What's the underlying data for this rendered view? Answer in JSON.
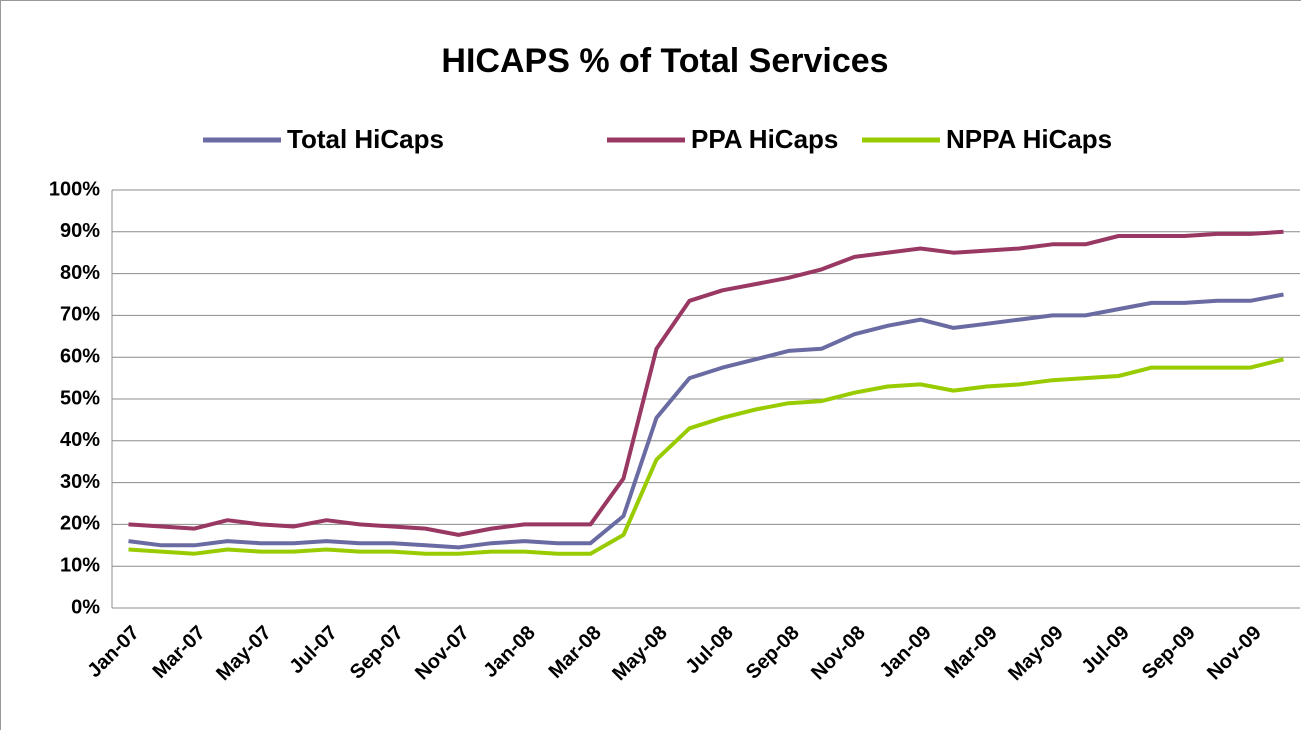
{
  "chart_data": {
    "type": "line",
    "title": "HICAPS % of Total Services",
    "categories": [
      "Jan-07",
      null,
      "Mar-07",
      null,
      "May-07",
      null,
      "Jul-07",
      null,
      "Sep-07",
      null,
      "Nov-07",
      null,
      "Jan-08",
      null,
      "Mar-08",
      null,
      "May-08",
      null,
      "Jul-08",
      null,
      "Sep-08",
      null,
      "Nov-08",
      null,
      "Jan-09",
      null,
      "Mar-09",
      null,
      "May-09",
      null,
      "Jul-09",
      null,
      "Sep-09",
      null,
      "Nov-09",
      null
    ],
    "series": [
      {
        "name": "Total HiCaps",
        "color": "#6b6ba3",
        "values": [
          16,
          15,
          15,
          16,
          15.5,
          15.5,
          16,
          15.5,
          15.5,
          15,
          14.5,
          15.5,
          16,
          15.5,
          15.5,
          22,
          45.5,
          55,
          57.5,
          59.5,
          61.5,
          62,
          65.5,
          67.5,
          69,
          67,
          68,
          69,
          70,
          70,
          71.5,
          73,
          73,
          73.5,
          73.5,
          75
        ]
      },
      {
        "name": "PPA HiCaps",
        "color": "#993862",
        "values": [
          20,
          19.5,
          19,
          21,
          20,
          19.5,
          21,
          20,
          19.5,
          19,
          17.5,
          19,
          20,
          20,
          20,
          31,
          62,
          73.5,
          76,
          77.5,
          79,
          81,
          84,
          85,
          86,
          85,
          85.5,
          86,
          87,
          87,
          89,
          89,
          89,
          89.5,
          89.5,
          90
        ]
      },
      {
        "name": "NPPA HiCaps",
        "color": "#99cc00",
        "values": [
          14,
          13.5,
          13,
          14,
          13.5,
          13.5,
          14,
          13.5,
          13.5,
          13,
          13,
          13.5,
          13.5,
          13,
          13,
          17.5,
          35.5,
          43,
          45.5,
          47.5,
          49,
          49.5,
          51.5,
          53,
          53.5,
          52,
          53,
          53.5,
          54.5,
          55,
          55.5,
          57.5,
          57.5,
          57.5,
          57.5,
          59.5
        ]
      }
    ],
    "ylim": [
      0,
      100
    ],
    "yticks": [
      {
        "value": 0,
        "label": "0%"
      },
      {
        "value": 10,
        "label": "10%"
      },
      {
        "value": 20,
        "label": "20%"
      },
      {
        "value": 30,
        "label": "30%"
      },
      {
        "value": 40,
        "label": "40%"
      },
      {
        "value": 50,
        "label": "50%"
      },
      {
        "value": 60,
        "label": "60%"
      },
      {
        "value": 70,
        "label": "70%"
      },
      {
        "value": 80,
        "label": "80%"
      },
      {
        "value": 90,
        "label": "90%"
      },
      {
        "value": 100,
        "label": "100%"
      }
    ],
    "grid": true,
    "legend": "top"
  }
}
